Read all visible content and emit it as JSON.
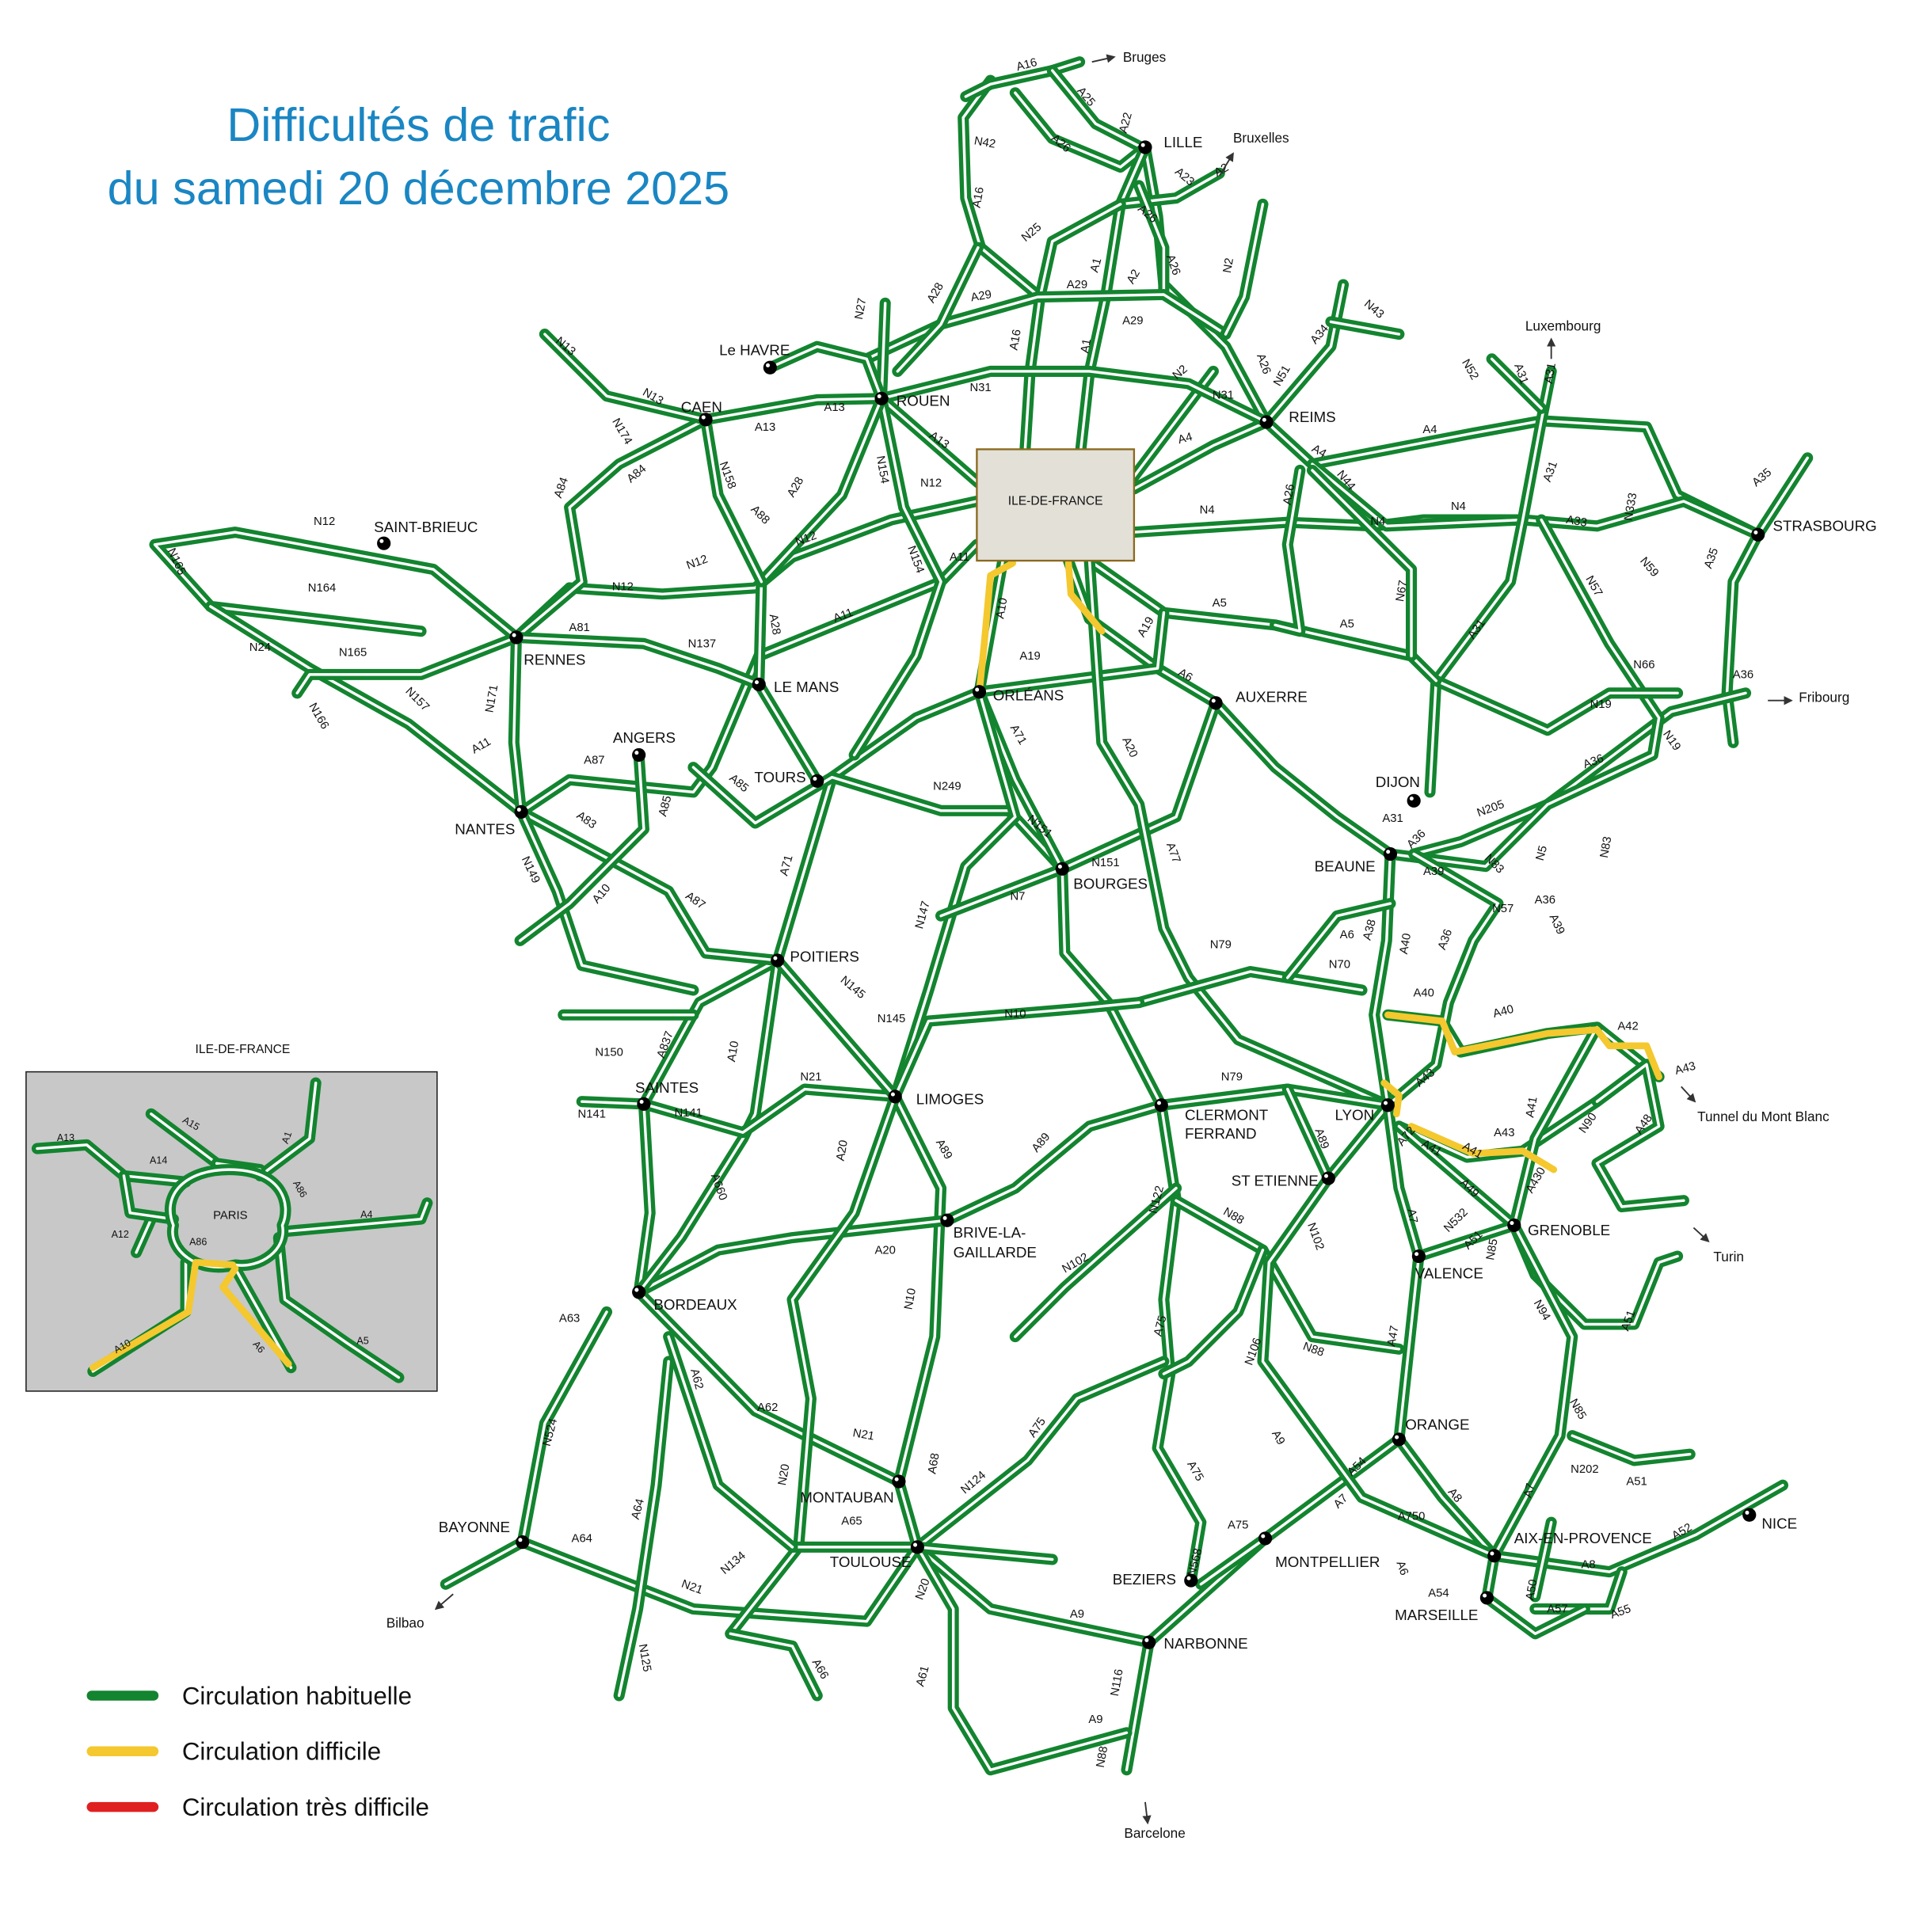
{
  "title": {
    "line1": "Difficultés de trafic",
    "line2": "du samedi 20 décembre 2025",
    "color": "#1a86c3"
  },
  "legend": [
    {
      "label": "Circulation habituelle",
      "color": "#13842f"
    },
    {
      "label": "Circulation difficile",
      "color": "#f4c82e"
    },
    {
      "label": "Circulation très difficile",
      "color": "#e02020"
    }
  ],
  "idf_box": {
    "label": "ILE-DE-FRANCE"
  },
  "inset": {
    "title": "ILE-DE-FRANCE",
    "center_label": "PARIS",
    "road_labels": [
      "A13",
      "A15",
      "A14",
      "A1",
      "A86",
      "A4",
      "A12",
      "A86",
      "A10",
      "A6",
      "A5"
    ]
  },
  "cities": [
    "LILLE",
    "REIMS",
    "ROUEN",
    "Le HAVRE",
    "CAEN",
    "SAINT-BRIEUC",
    "RENNES",
    "LE MANS",
    "ANGERS",
    "TOURS",
    "NANTES",
    "ORLÉANS",
    "AUXERRE",
    "DIJON",
    "BEAUNE",
    "STRASBOURG",
    "BOURGES",
    "POITIERS",
    "LIMOGES",
    "SAINTES",
    "CLERMONT",
    "FERRAND",
    "LYON",
    "ST ETIENNE",
    "GRENOBLE",
    "VALENCE",
    "BRIVE-LA-",
    "GAILLARDE",
    "BORDEAUX",
    "ORANGE",
    "MONTAUBAN",
    "TOULOUSE",
    "BAYONNE",
    "MONTPELLIER",
    "BEZIERS",
    "NARBONNE",
    "AIX-EN-PROVENCE",
    "MARSEILLE",
    "NICE"
  ],
  "destinations": [
    "Bruges",
    "Bruxelles",
    "Luxembourg",
    "Fribourg",
    "Tunnel du Mont Blanc",
    "Turin",
    "Bilbao",
    "Barcelone"
  ],
  "road_labels": [
    "A16",
    "A25",
    "A22",
    "N42",
    "A26",
    "A23",
    "A2",
    "A16",
    "N25",
    "A1",
    "A26",
    "A2",
    "A26",
    "A28",
    "A29",
    "A29",
    "A29",
    "N2",
    "N27",
    "A16",
    "A1",
    "N31",
    "N31",
    "A26",
    "N51",
    "A34",
    "N43",
    "N2",
    "A4",
    "A4",
    "A4",
    "N4",
    "N4",
    "N4",
    "A31",
    "N52",
    "A31",
    "A31",
    "A33",
    "N333",
    "A35",
    "N59",
    "A35",
    "N57",
    "A36",
    "N66",
    "N19",
    "A36",
    "N19",
    "A5",
    "A5",
    "A31",
    "A26",
    "N44",
    "N67",
    "A6",
    "A19",
    "A10",
    "A19",
    "A11",
    "A11",
    "N12",
    "N12",
    "N12",
    "N12",
    "N13",
    "A13",
    "A13",
    "A13",
    "N13",
    "N174",
    "A84",
    "A84",
    "N158",
    "A88",
    "A28",
    "A28",
    "N154",
    "N154",
    "N12",
    "N164",
    "N165",
    "N24",
    "N165",
    "N166",
    "N157",
    "A81",
    "N137",
    "N171",
    "A11",
    "A87",
    "A85",
    "A85",
    "N249",
    "A83",
    "N149",
    "A87",
    "A10",
    "A71",
    "A71",
    "N151",
    "N151",
    "N7",
    "A77",
    "A20",
    "N147",
    "N145",
    "N145",
    "N10",
    "A10",
    "A837",
    "N150",
    "N141",
    "N141",
    "N21",
    "A20",
    "A89",
    "A89",
    "A20",
    "N10",
    "A660",
    "A63",
    "N524",
    "A62",
    "A62",
    "N21",
    "N20",
    "A68",
    "N124",
    "A65",
    "A64",
    "A64",
    "N21",
    "N134",
    "N125",
    "A66",
    "N20",
    "A61",
    "A9",
    "N116",
    "A9",
    "N88",
    "A75",
    "A75",
    "A75",
    "N122",
    "N102",
    "N88",
    "N102",
    "N88",
    "N106",
    "A9",
    "A54",
    "A7",
    "A7",
    "A47",
    "A72",
    "A89",
    "N79",
    "N79",
    "N70",
    "A6",
    "A40",
    "A40",
    "A40",
    "A42",
    "A43",
    "A43",
    "A41",
    "A41",
    "A430",
    "N90",
    "A48",
    "A49",
    "N532",
    "A51",
    "N85",
    "N94",
    "A51",
    "N85",
    "N202",
    "A51",
    "A7",
    "A8",
    "A8",
    "A52",
    "A50",
    "A57",
    "A55",
    "A54",
    "A750",
    "A75",
    "N568",
    "A6",
    "A38",
    "A31",
    "A36",
    "A39",
    "N83",
    "N5",
    "N57",
    "A39",
    "N83",
    "A36",
    "A36",
    "N205",
    "A43",
    "A41"
  ]
}
